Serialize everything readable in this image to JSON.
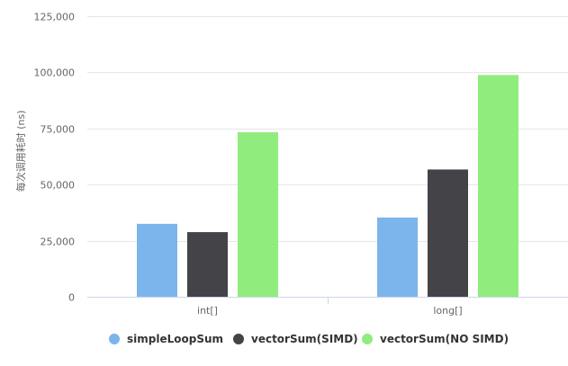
{
  "chart_data": {
    "type": "bar",
    "title": "",
    "xlabel": "",
    "ylabel": "每次调用耗时 (ns)",
    "categories": [
      "int[]",
      "long[]"
    ],
    "ylim": [
      0,
      125000
    ],
    "yticks": [
      0,
      25000,
      50000,
      75000,
      100000,
      125000
    ],
    "ytick_labels": [
      "0",
      "25,000",
      "50,000",
      "75,000",
      "100,000",
      "125,000"
    ],
    "grid": true,
    "legend_position": "bottom",
    "series": [
      {
        "name": "simpleLoopSum",
        "values": [
          32500,
          35300
        ],
        "color": "#7cb5ec"
      },
      {
        "name": "vectorSum(SIMD)",
        "values": [
          28800,
          56700
        ],
        "color": "#434348"
      },
      {
        "name": "vectorSum(NO SIMD)",
        "values": [
          73300,
          98800
        ],
        "color": "#90ed7d"
      }
    ]
  }
}
